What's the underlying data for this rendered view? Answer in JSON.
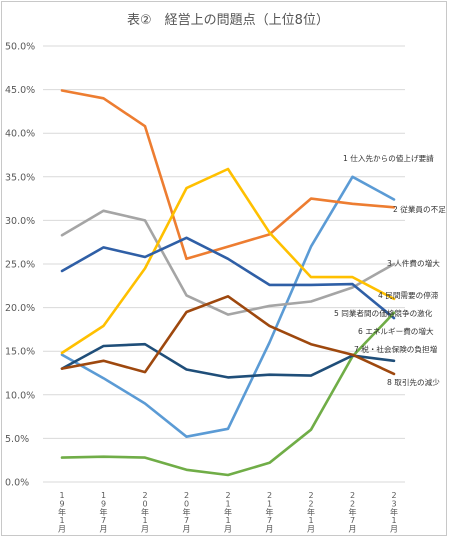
{
  "chart_data": {
    "type": "line",
    "title": "表②　経営上の問題点（上位8位）",
    "xlabel": "",
    "ylabel": "",
    "ylim": [
      0,
      50
    ],
    "ytick_step": 5,
    "y_tick_labels": [
      "0.0%",
      "5.0%",
      "10.0%",
      "15.0%",
      "20.0%",
      "25.0%",
      "30.0%",
      "35.0%",
      "40.0%",
      "45.0%",
      "50.0%"
    ],
    "grid": true,
    "categories": [
      "19年1月",
      "19年7月",
      "20年1月",
      "20年7月",
      "21年1月",
      "21年7月",
      "22年1月",
      "22年7月",
      "23年1月"
    ],
    "series": [
      {
        "name": "1 仕入先からの値上げ要請",
        "color": "#5b9bd5",
        "values": [
          14.6,
          11.9,
          9.0,
          5.2,
          6.1,
          16.0,
          27.0,
          35.0,
          32.4
        ]
      },
      {
        "name": "2 従業員の不足",
        "color": "#ed7d31",
        "values": [
          44.9,
          44.0,
          40.8,
          25.6,
          27.0,
          28.4,
          32.5,
          31.9,
          31.5
        ]
      },
      {
        "name": "3 人件費の増大",
        "color": "#a5a5a5",
        "values": [
          28.3,
          31.1,
          30.0,
          21.4,
          19.2,
          20.2,
          20.7,
          22.3,
          25.0
        ]
      },
      {
        "name": "4 民間需要の停滞",
        "color": "#ffc000",
        "values": [
          14.8,
          17.9,
          24.5,
          33.7,
          35.9,
          28.6,
          23.5,
          23.5,
          21.0
        ]
      },
      {
        "name": "5 同業者間の価格競争の激化",
        "color": "#2f5fa6",
        "values": [
          24.2,
          26.9,
          25.8,
          28.0,
          25.6,
          22.6,
          22.6,
          22.7,
          18.8
        ]
      },
      {
        "name": "6 エネルギー費の増大",
        "color": "#70ad47",
        "values": [
          2.8,
          2.9,
          2.8,
          1.4,
          0.8,
          2.2,
          6.0,
          14.4,
          19.4
        ]
      },
      {
        "name": "7 税・社会保険の負担増",
        "color": "#1f4e79",
        "values": [
          13.0,
          15.6,
          15.8,
          12.9,
          12.0,
          12.3,
          12.2,
          14.5,
          13.9
        ]
      },
      {
        "name": "8 取引先の減少",
        "color": "#9e480e",
        "values": [
          13.0,
          13.9,
          12.6,
          19.5,
          21.3,
          17.9,
          15.8,
          14.6,
          12.4
        ]
      }
    ]
  }
}
